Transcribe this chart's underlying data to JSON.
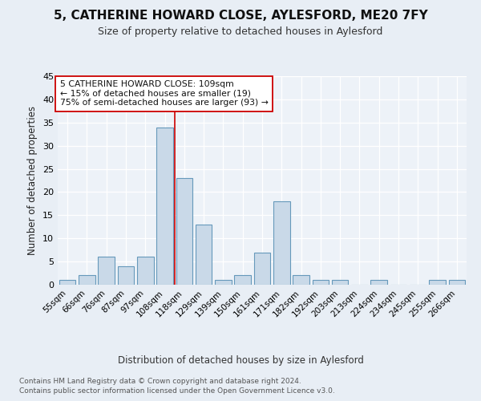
{
  "title1": "5, CATHERINE HOWARD CLOSE, AYLESFORD, ME20 7FY",
  "title2": "Size of property relative to detached houses in Aylesford",
  "xlabel": "Distribution of detached houses by size in Aylesford",
  "ylabel": "Number of detached properties",
  "categories": [
    "55sqm",
    "66sqm",
    "76sqm",
    "87sqm",
    "97sqm",
    "108sqm",
    "118sqm",
    "129sqm",
    "139sqm",
    "150sqm",
    "161sqm",
    "171sqm",
    "182sqm",
    "192sqm",
    "203sqm",
    "213sqm",
    "224sqm",
    "234sqm",
    "245sqm",
    "255sqm",
    "266sqm"
  ],
  "values": [
    1,
    2,
    6,
    4,
    6,
    34,
    23,
    13,
    1,
    2,
    7,
    18,
    2,
    1,
    1,
    0,
    1,
    0,
    0,
    1,
    1
  ],
  "bar_color": "#c9d9e8",
  "bar_edge_color": "#6699bb",
  "vline_x": 5.5,
  "vline_color": "#cc0000",
  "annotation_line1": "5 CATHERINE HOWARD CLOSE: 109sqm",
  "annotation_line2": "← 15% of detached houses are smaller (19)",
  "annotation_line3": "75% of semi-detached houses are larger (93) →",
  "annotation_box_color": "#ffffff",
  "annotation_box_edge": "#cc0000",
  "ylim": [
    0,
    45
  ],
  "yticks": [
    0,
    5,
    10,
    15,
    20,
    25,
    30,
    35,
    40,
    45
  ],
  "footer1": "Contains HM Land Registry data © Crown copyright and database right 2024.",
  "footer2": "Contains public sector information licensed under the Open Government Licence v3.0.",
  "bg_color": "#e8eef5",
  "plot_bg_color": "#edf2f8"
}
